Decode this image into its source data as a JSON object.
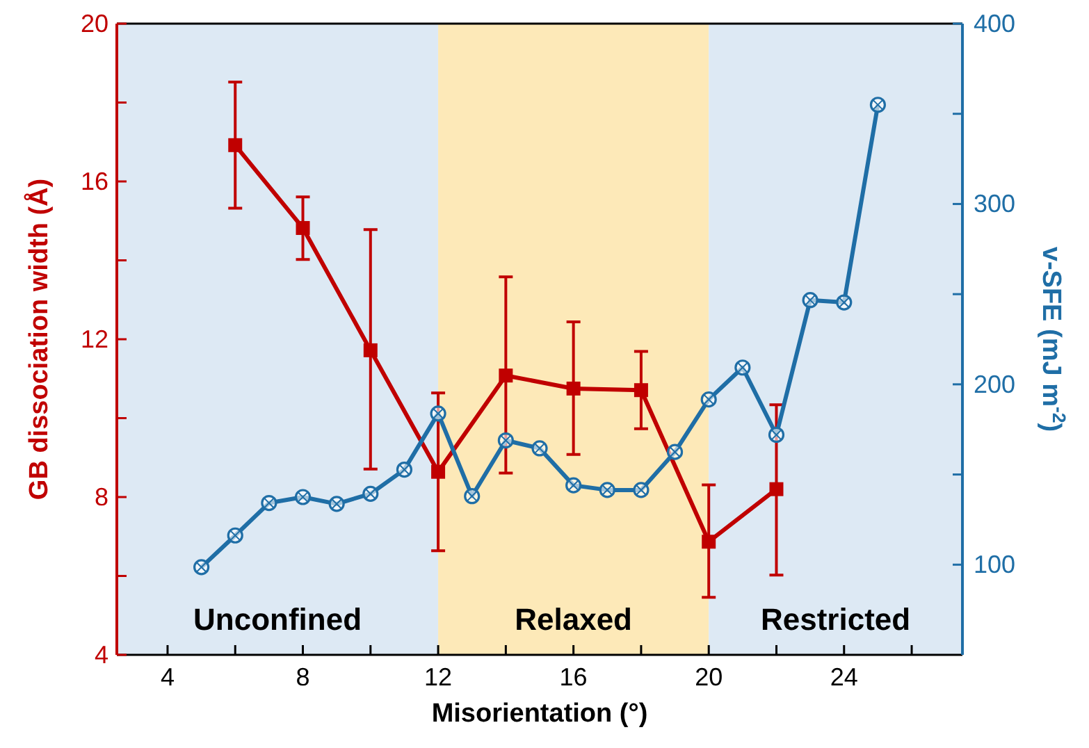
{
  "chart_data": {
    "type": "line",
    "xlabel": "Misorientation (°)",
    "ylabel": "GB dissociation width (Å)",
    "y2label": "v-SFE (mJ m$^{-2}$)",
    "xlim": [
      2.5,
      27.5
    ],
    "xticks": [
      4,
      {
        "value": 6,
        "label": null
      },
      8,
      {
        "value": 10,
        "label": null
      },
      12,
      {
        "value": 14,
        "label": null
      },
      16,
      {
        "value": 18,
        "label": null
      },
      20,
      {
        "value": 22,
        "label": null
      },
      24,
      {
        "value": 26,
        "label": null
      }
    ],
    "ylim": [
      4,
      20
    ],
    "yticks": [
      4,
      {
        "value": 6,
        "label": null
      },
      8,
      {
        "value": 10,
        "label": null
      },
      12,
      {
        "value": 14,
        "label": null
      },
      16,
      {
        "value": 18,
        "label": null
      },
      20
    ],
    "y2lim": [
      50,
      400
    ],
    "y2ticks": [
      100,
      {
        "value": 150,
        "label": null
      },
      200,
      {
        "value": 250,
        "label": null
      },
      300,
      {
        "value": 350,
        "label": null
      },
      400
    ],
    "series": [
      {
        "color": "#c00000",
        "marker": "square",
        "x": [
          6,
          8,
          10,
          12,
          14,
          16,
          18,
          20,
          22
        ],
        "values": [
          16.92,
          14.82,
          11.72,
          8.64,
          11.08,
          10.75,
          10.71,
          6.87,
          8.2
        ],
        "errors": [
          [
            15.32,
            18.52
          ],
          [
            14.02,
            15.61
          ],
          [
            8.71,
            14.78
          ],
          [
            6.64,
            10.64
          ],
          [
            8.61,
            13.58
          ],
          [
            9.08,
            12.44
          ],
          [
            9.73,
            11.69
          ],
          [
            5.46,
            8.31
          ],
          [
            6.02,
            10.34
          ]
        ]
      },
      {
        "color": "#1f6ea6",
        "marker": "cross",
        "axis": "y2",
        "x": [
          5,
          6,
          7,
          8,
          9,
          10,
          11,
          12,
          13,
          14,
          15,
          16,
          17,
          18,
          19,
          20,
          21,
          22,
          23,
          24,
          25
        ],
        "values": [
          98.6,
          116.2,
          134.2,
          137.5,
          133.7,
          139.3,
          152.7,
          183.8,
          138,
          168.9,
          164.5,
          144,
          141.4,
          141.4,
          162.5,
          191.6,
          209.3,
          172,
          246.7,
          245.4,
          355
        ]
      }
    ],
    "bands": [
      {
        "axis": "x",
        "from": 2.5,
        "to": 12,
        "label": "Unconfined",
        "color": "#dde9f4"
      },
      {
        "axis": "x",
        "from": 12,
        "to": 20,
        "label": "Relaxed",
        "color": "#fde9b8"
      },
      {
        "axis": "x",
        "from": 20,
        "to": 27.5,
        "label": "Restricted",
        "color": "#dde9f4"
      }
    ],
    "grid": false
  }
}
